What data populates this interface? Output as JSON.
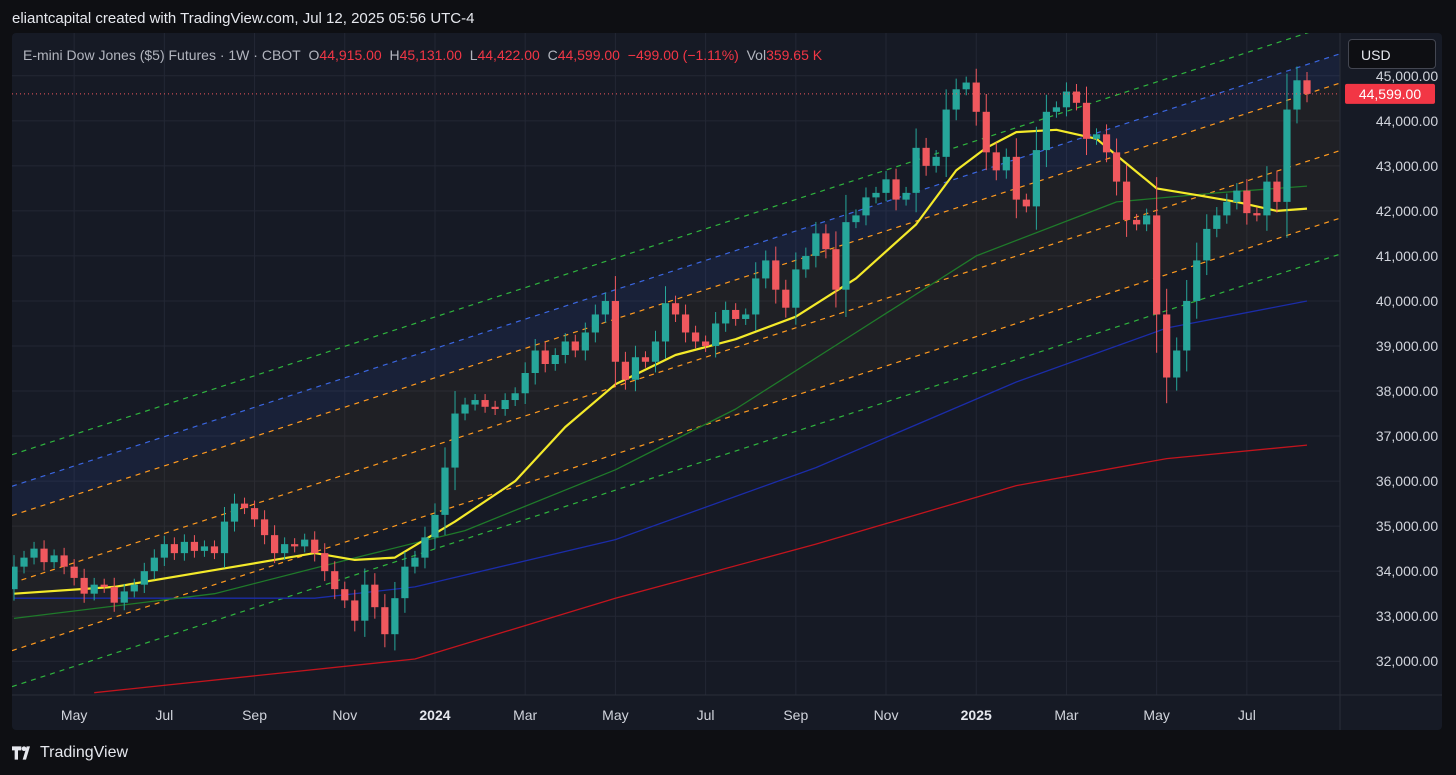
{
  "header": {
    "caption": "eliantcapital created with TradingView.com, Jul 12, 2025 05:56 UTC-4"
  },
  "legend": {
    "symbol": "E-mini Dow Jones ($5) Futures · 1W · CBOT",
    "open_label": "O",
    "open_value": "44,915.00",
    "high_label": "H",
    "high_value": "45,131.00",
    "low_label": "L",
    "low_value": "44,422.00",
    "close_label": "C",
    "close_value": "44,599.00",
    "change": "−499.00 (−1.11%)",
    "vol_label": "Vol",
    "vol_value": "359.65 K"
  },
  "currency_button": "USD",
  "footer": {
    "brand": "TradingView"
  },
  "colors": {
    "up": "#26a69a",
    "down": "#f0585e",
    "background": "#161a25",
    "ema_fast": "#f4ea2a",
    "ma_green": "#1f7a2a",
    "ma_blue": "#1b2ca8",
    "ma_red": "#c2141d",
    "channel_green": "#2fb43e",
    "channel_blue": "#3a66e0",
    "channel_orange": "#ff9a1f"
  },
  "chart_data": {
    "type": "candlestick",
    "interval": "1W",
    "ylim": [
      31250,
      45950
    ],
    "y_ticks": [
      "45,000.00",
      "44,000.00",
      "43,000.00",
      "42,000.00",
      "41,000.00",
      "40,000.00",
      "39,000.00",
      "38,000.00",
      "37,000.00",
      "36,000.00",
      "35,000.00",
      "34,000.00",
      "33,000.00",
      "32,000.00"
    ],
    "last_price": "44,599.00",
    "last_price_value": 44599,
    "x_labels": [
      {
        "label": "May",
        "bar": 6,
        "bold": false
      },
      {
        "label": "Jul",
        "bar": 15,
        "bold": false
      },
      {
        "label": "Sep",
        "bar": 24,
        "bold": false
      },
      {
        "label": "Nov",
        "bar": 33,
        "bold": false
      },
      {
        "label": "2024",
        "bar": 42,
        "bold": true
      },
      {
        "label": "Mar",
        "bar": 51,
        "bold": false
      },
      {
        "label": "May",
        "bar": 60,
        "bold": false
      },
      {
        "label": "Jul",
        "bar": 69,
        "bold": false
      },
      {
        "label": "Sep",
        "bar": 78,
        "bold": false
      },
      {
        "label": "Nov",
        "bar": 87,
        "bold": false
      },
      {
        "label": "2025",
        "bar": 96,
        "bold": true
      },
      {
        "label": "Mar",
        "bar": 105,
        "bold": false
      },
      {
        "label": "May",
        "bar": 114,
        "bold": false
      },
      {
        "label": "Jul",
        "bar": 123,
        "bold": false
      }
    ],
    "closes": [
      34100,
      34300,
      34500,
      34200,
      34350,
      34100,
      33850,
      33500,
      33700,
      33650,
      33300,
      33550,
      33700,
      34000,
      34300,
      34600,
      34400,
      34650,
      34450,
      34550,
      34400,
      35100,
      35500,
      35400,
      35150,
      34800,
      34400,
      34600,
      34550,
      34700,
      34400,
      34000,
      33600,
      33350,
      32900,
      33700,
      33200,
      32600,
      33400,
      34100,
      34300,
      34750,
      35250,
      36300,
      37500,
      37700,
      37800,
      37650,
      37600,
      37800,
      37950,
      38400,
      38900,
      38600,
      38800,
      39100,
      38900,
      39300,
      39700,
      40000,
      38650,
      38250,
      38750,
      38650,
      39100,
      39950,
      39700,
      39300,
      39100,
      39000,
      39500,
      39800,
      39600,
      39700,
      40500,
      40900,
      40250,
      39850,
      40700,
      41000,
      41500,
      41150,
      40250,
      41750,
      41900,
      42300,
      42400,
      42700,
      42250,
      42400,
      43400,
      43000,
      43200,
      44250,
      44700,
      44850,
      44200,
      43300,
      42900,
      43200,
      42250,
      42100,
      43350,
      44200,
      44300,
      44650,
      44400,
      43600,
      43700,
      43300,
      42650,
      41800,
      41700,
      41900,
      39700,
      38300,
      38900,
      40000,
      40900,
      41600,
      41900,
      42200,
      42450,
      41950,
      41900,
      42650,
      42200,
      44250,
      44900,
      44599
    ],
    "opens_volatile_note": "",
    "indicators": {
      "ema_fast": [
        [
          0,
          33500
        ],
        [
          10,
          33650
        ],
        [
          22,
          34100
        ],
        [
          30,
          34400
        ],
        [
          34,
          34250
        ],
        [
          38,
          34300
        ],
        [
          44,
          35100
        ],
        [
          50,
          36000
        ],
        [
          55,
          37200
        ],
        [
          60,
          38150
        ],
        [
          66,
          38800
        ],
        [
          72,
          39150
        ],
        [
          78,
          39650
        ],
        [
          84,
          40500
        ],
        [
          90,
          41700
        ],
        [
          94,
          42900
        ],
        [
          97,
          43400
        ],
        [
          100,
          43750
        ],
        [
          104,
          43800
        ],
        [
          108,
          43600
        ],
        [
          111,
          43050
        ],
        [
          114,
          42500
        ],
        [
          118,
          42350
        ],
        [
          122,
          42200
        ],
        [
          126,
          42000
        ],
        [
          129,
          42050
        ]
      ],
      "ma_green": [
        [
          0,
          32950
        ],
        [
          20,
          33500
        ],
        [
          35,
          34350
        ],
        [
          45,
          34900
        ],
        [
          60,
          36250
        ],
        [
          72,
          37600
        ],
        [
          84,
          39300
        ],
        [
          96,
          41000
        ],
        [
          110,
          42200
        ],
        [
          120,
          42400
        ],
        [
          129,
          42550
        ]
      ],
      "ma_blue": [
        [
          0,
          33400
        ],
        [
          30,
          33400
        ],
        [
          40,
          33650
        ],
        [
          60,
          34700
        ],
        [
          80,
          36300
        ],
        [
          100,
          38200
        ],
        [
          115,
          39400
        ],
        [
          129,
          40000
        ]
      ],
      "ma_red": [
        [
          8,
          31300
        ],
        [
          40,
          32050
        ],
        [
          60,
          33400
        ],
        [
          80,
          34600
        ],
        [
          100,
          35900
        ],
        [
          115,
          36500
        ],
        [
          129,
          36800
        ]
      ]
    },
    "channel": {
      "start": {
        "bar": 0,
        "value": 33750
      },
      "end": {
        "bar": 129,
        "value": 43100
      },
      "lines": [
        {
          "offset": 2850,
          "color": "green"
        },
        {
          "offset": 2150,
          "color": "blue"
        },
        {
          "offset": 1500,
          "color": "orange"
        },
        {
          "offset": 0,
          "color": "orange"
        },
        {
          "offset": -1500,
          "color": "orange"
        },
        {
          "offset": -2300,
          "color": "green"
        }
      ]
    }
  }
}
